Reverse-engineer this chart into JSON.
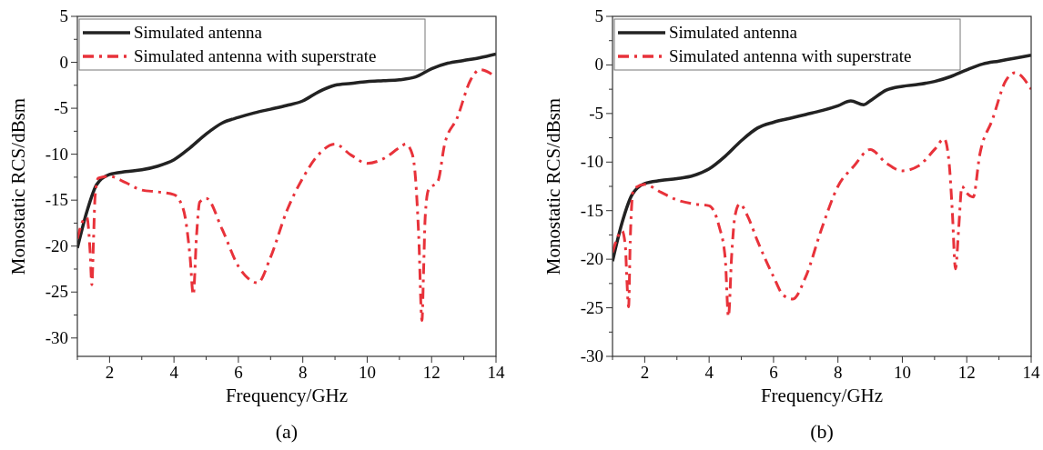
{
  "chart_data": [
    {
      "type": "line",
      "title": "(a)",
      "xlabel": "Frequency/GHz",
      "ylabel": "Monostatic RCS/dBsm",
      "xlim": [
        1,
        14
      ],
      "ylim": [
        -32,
        5
      ],
      "xticks": [
        {
          "value": 1,
          "label": null
        },
        2,
        {
          "value": 3,
          "label": null
        },
        4,
        {
          "value": 5,
          "label": null
        },
        6,
        {
          "value": 7,
          "label": null
        },
        8,
        {
          "value": 9,
          "label": null
        },
        10,
        {
          "value": 11,
          "label": null
        },
        12,
        {
          "value": 13,
          "label": null
        },
        14
      ],
      "yticks": [
        5,
        {
          "value": 2.5,
          "label": null
        },
        0,
        {
          "value": -2.5,
          "label": null
        },
        -5,
        {
          "value": -7.5,
          "label": null
        },
        -10,
        {
          "value": -12.5,
          "label": null
        },
        -15,
        {
          "value": -17.5,
          "label": null
        },
        -20,
        {
          "value": -22.5,
          "label": null
        },
        -25,
        {
          "value": -27.5,
          "label": null
        },
        -30
      ],
      "legend": "top left",
      "grid": false,
      "series": [
        {
          "name": "Simulated antenna",
          "color": "#222222",
          "line_style": "solid",
          "x": [
            1,
            1.3,
            1.6,
            2,
            2.5,
            3,
            3.5,
            4,
            4.5,
            5,
            5.5,
            6,
            6.5,
            7,
            7.5,
            8,
            8.5,
            9,
            9.5,
            10,
            10.5,
            11,
            11.5,
            12,
            12.5,
            13,
            13.5,
            14
          ],
          "values": [
            -20.2,
            -16.2,
            -13.3,
            -12.2,
            -11.9,
            -11.7,
            -11.3,
            -10.6,
            -9.3,
            -7.8,
            -6.6,
            -6.0,
            -5.5,
            -5.1,
            -4.7,
            -4.2,
            -3.2,
            -2.5,
            -2.3,
            -2.1,
            -2.0,
            -1.9,
            -1.6,
            -0.7,
            -0.1,
            0.2,
            0.5,
            0.9
          ]
        },
        {
          "name": "Simulated antenna with superstrate",
          "color": "#e8323a",
          "line_style": "dashed",
          "x": [
            1,
            1.2,
            1.3,
            1.35,
            1.4,
            1.45,
            1.5,
            1.55,
            1.65,
            2,
            2.5,
            3,
            3.5,
            4,
            4.2,
            4.35,
            4.5,
            4.6,
            4.7,
            4.8,
            5,
            5.5,
            6,
            6.3,
            6.6,
            7,
            7.5,
            8,
            8.5,
            9,
            9.5,
            10,
            10.5,
            11,
            11.2,
            11.4,
            11.5,
            11.6,
            11.7,
            11.75,
            11.8,
            11.9,
            12.2,
            12.4,
            12.8,
            13.2,
            13.5,
            14
          ],
          "values": [
            -19.2,
            -17.1,
            -16.9,
            -18.2,
            -20.9,
            -24.2,
            -19.5,
            -14.6,
            -12.6,
            -12.4,
            -13.1,
            -13.9,
            -14.1,
            -14.4,
            -15.2,
            -16.9,
            -21.2,
            -25.3,
            -18.9,
            -15.2,
            -14.8,
            -18.2,
            -22.2,
            -23.5,
            -24.0,
            -21.2,
            -16.2,
            -12.6,
            -10.0,
            -8.9,
            -10.1,
            -11.0,
            -10.5,
            -9.3,
            -8.9,
            -10.0,
            -12.6,
            -18.9,
            -28.1,
            -22.8,
            -16.9,
            -13.9,
            -12.9,
            -9.0,
            -6.0,
            -2.0,
            -0.8,
            -1.6
          ]
        }
      ]
    },
    {
      "type": "line",
      "title": "(b)",
      "xlabel": "Frequency/GHz",
      "ylabel": "Monostatic RCS/dBsm",
      "xlim": [
        1,
        14
      ],
      "ylim": [
        -30,
        5
      ],
      "xticks": [
        {
          "value": 1,
          "label": null
        },
        2,
        {
          "value": 3,
          "label": null
        },
        4,
        {
          "value": 5,
          "label": null
        },
        6,
        {
          "value": 7,
          "label": null
        },
        8,
        {
          "value": 9,
          "label": null
        },
        10,
        {
          "value": 11,
          "label": null
        },
        12,
        {
          "value": 13,
          "label": null
        },
        14
      ],
      "yticks": [
        5,
        {
          "value": 2.5,
          "label": null
        },
        0,
        {
          "value": -2.5,
          "label": null
        },
        -5,
        {
          "value": -7.5,
          "label": null
        },
        -10,
        {
          "value": -12.5,
          "label": null
        },
        -15,
        {
          "value": -17.5,
          "label": null
        },
        -20,
        {
          "value": -22.5,
          "label": null
        },
        -25,
        {
          "value": -27.5,
          "label": null
        },
        -30
      ],
      "legend": "top left",
      "grid": false,
      "series": [
        {
          "name": "Simulated antenna",
          "color": "#222222",
          "line_style": "solid",
          "x": [
            1,
            1.3,
            1.6,
            2,
            2.5,
            3,
            3.5,
            4,
            4.5,
            5,
            5.5,
            6,
            6.5,
            7,
            7.5,
            8,
            8.4,
            8.8,
            9,
            9.5,
            10,
            10.5,
            11,
            11.5,
            12,
            12.5,
            13,
            13.5,
            14
          ],
          "values": [
            -20.2,
            -16.2,
            -13.4,
            -12.2,
            -11.9,
            -11.7,
            -11.4,
            -10.7,
            -9.4,
            -7.8,
            -6.5,
            -5.9,
            -5.5,
            -5.1,
            -4.7,
            -4.2,
            -3.7,
            -4.1,
            -3.7,
            -2.6,
            -2.2,
            -2.0,
            -1.7,
            -1.2,
            -0.5,
            0.1,
            0.4,
            0.7,
            1.0
          ]
        },
        {
          "name": "Simulated antenna with superstrate",
          "color": "#e8323a",
          "line_style": "dashed",
          "x": [
            1,
            1.3,
            1.4,
            1.45,
            1.5,
            1.55,
            1.65,
            2,
            2.5,
            3,
            3.5,
            4,
            4.3,
            4.5,
            4.6,
            4.7,
            4.8,
            4.95,
            5.2,
            5.5,
            6,
            6.3,
            6.6,
            7,
            7.5,
            8,
            8.5,
            9,
            9.5,
            10,
            10.5,
            11,
            11.3,
            11.45,
            11.55,
            11.65,
            11.75,
            11.85,
            12,
            12.2,
            12.4,
            12.8,
            13.2,
            13.5,
            14
          ],
          "values": [
            -19.3,
            -17.1,
            -18.7,
            -22.4,
            -24.9,
            -18.1,
            -12.8,
            -12.3,
            -13.1,
            -13.9,
            -14.3,
            -14.5,
            -16.5,
            -19.9,
            -25.9,
            -19.6,
            -15.6,
            -14.3,
            -15.6,
            -18.1,
            -21.8,
            -23.7,
            -24.1,
            -21.8,
            -16.8,
            -12.5,
            -10.4,
            -8.7,
            -10.1,
            -10.9,
            -10.4,
            -8.7,
            -7.6,
            -10.0,
            -15.0,
            -21.0,
            -16.8,
            -12.5,
            -13.2,
            -13.6,
            -9.3,
            -5.6,
            -1.7,
            -0.8,
            -2.5
          ]
        }
      ]
    }
  ]
}
